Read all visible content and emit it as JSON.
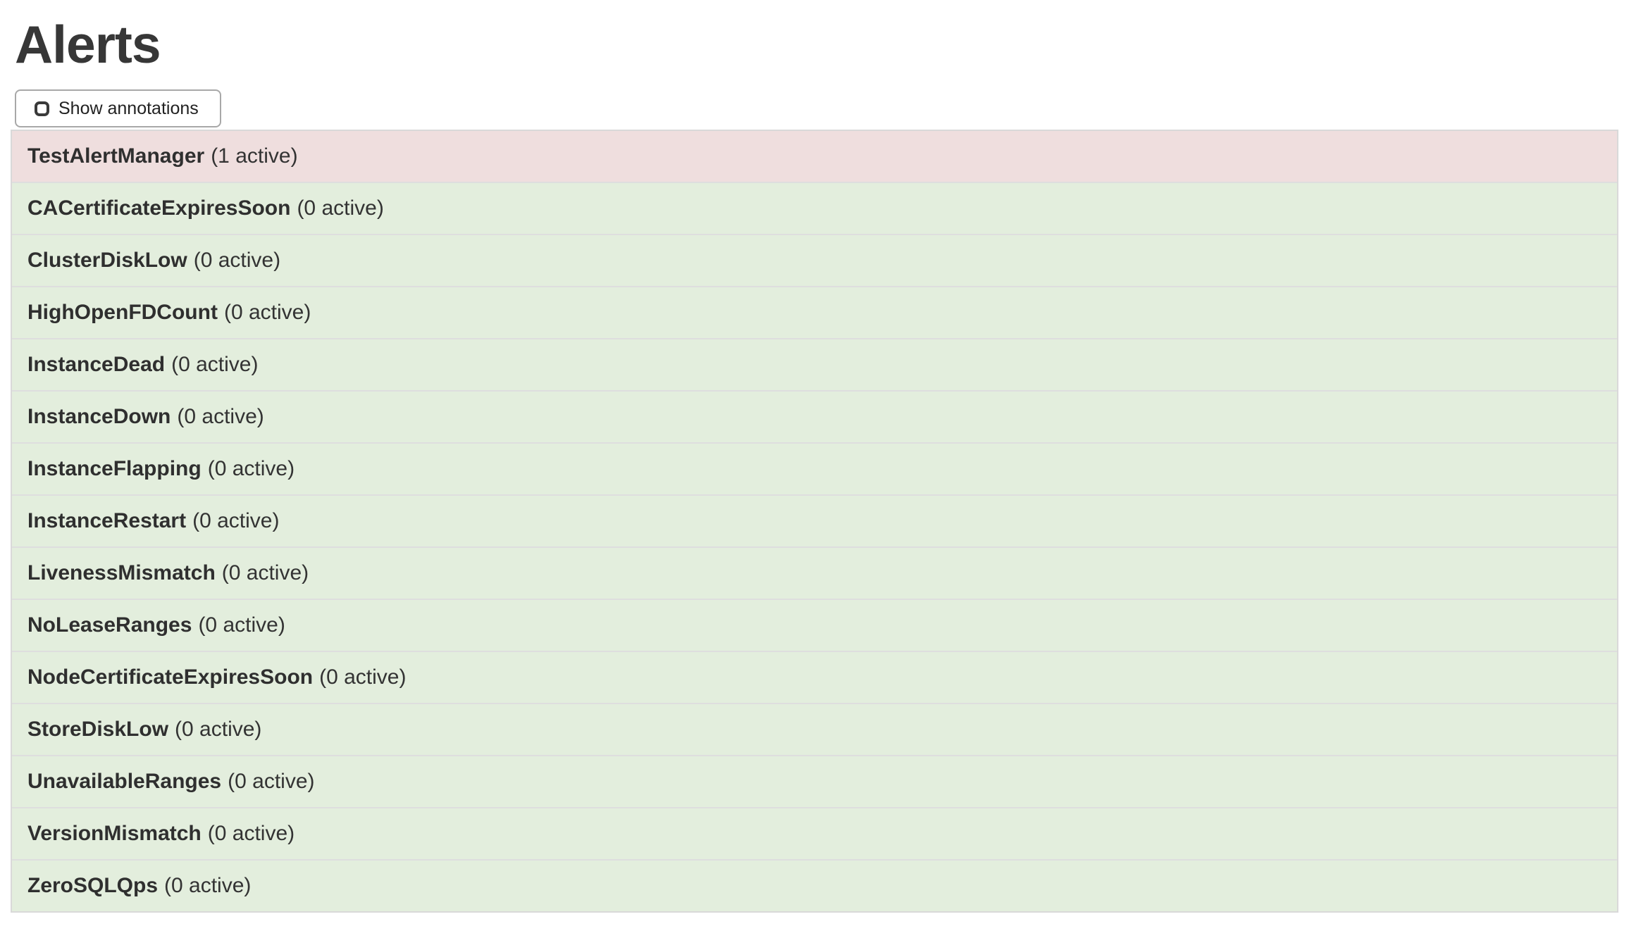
{
  "page": {
    "title": "Alerts"
  },
  "toolbar": {
    "show_annotations_label": "Show annotations",
    "checkbox_checked": false
  },
  "alerts": [
    {
      "name": "TestAlertManager",
      "active": 1,
      "suffix": "(1 active)",
      "state": "firing"
    },
    {
      "name": "CACertificateExpiresSoon",
      "active": 0,
      "suffix": "(0 active)",
      "state": "inactive"
    },
    {
      "name": "ClusterDiskLow",
      "active": 0,
      "suffix": "(0 active)",
      "state": "inactive"
    },
    {
      "name": "HighOpenFDCount",
      "active": 0,
      "suffix": "(0 active)",
      "state": "inactive"
    },
    {
      "name": "InstanceDead",
      "active": 0,
      "suffix": "(0 active)",
      "state": "inactive"
    },
    {
      "name": "InstanceDown",
      "active": 0,
      "suffix": "(0 active)",
      "state": "inactive"
    },
    {
      "name": "InstanceFlapping",
      "active": 0,
      "suffix": "(0 active)",
      "state": "inactive"
    },
    {
      "name": "InstanceRestart",
      "active": 0,
      "suffix": "(0 active)",
      "state": "inactive"
    },
    {
      "name": "LivenessMismatch",
      "active": 0,
      "suffix": "(0 active)",
      "state": "inactive"
    },
    {
      "name": "NoLeaseRanges",
      "active": 0,
      "suffix": "(0 active)",
      "state": "inactive"
    },
    {
      "name": "NodeCertificateExpiresSoon",
      "active": 0,
      "suffix": "(0 active)",
      "state": "inactive"
    },
    {
      "name": "StoreDiskLow",
      "active": 0,
      "suffix": "(0 active)",
      "state": "inactive"
    },
    {
      "name": "UnavailableRanges",
      "active": 0,
      "suffix": "(0 active)",
      "state": "inactive"
    },
    {
      "name": "VersionMismatch",
      "active": 0,
      "suffix": "(0 active)",
      "state": "inactive"
    },
    {
      "name": "ZeroSQLQps",
      "active": 0,
      "suffix": "(0 active)",
      "state": "inactive"
    }
  ],
  "colors": {
    "firing_row_bg": "#efdede",
    "inactive_row_bg": "#e3eedd",
    "row_separator": "#dedede",
    "list_border": "#d9d9d9",
    "button_border": "#a8a8a8",
    "title_text": "#373737",
    "body_text": "#333333",
    "page_bg": "#ffffff"
  }
}
